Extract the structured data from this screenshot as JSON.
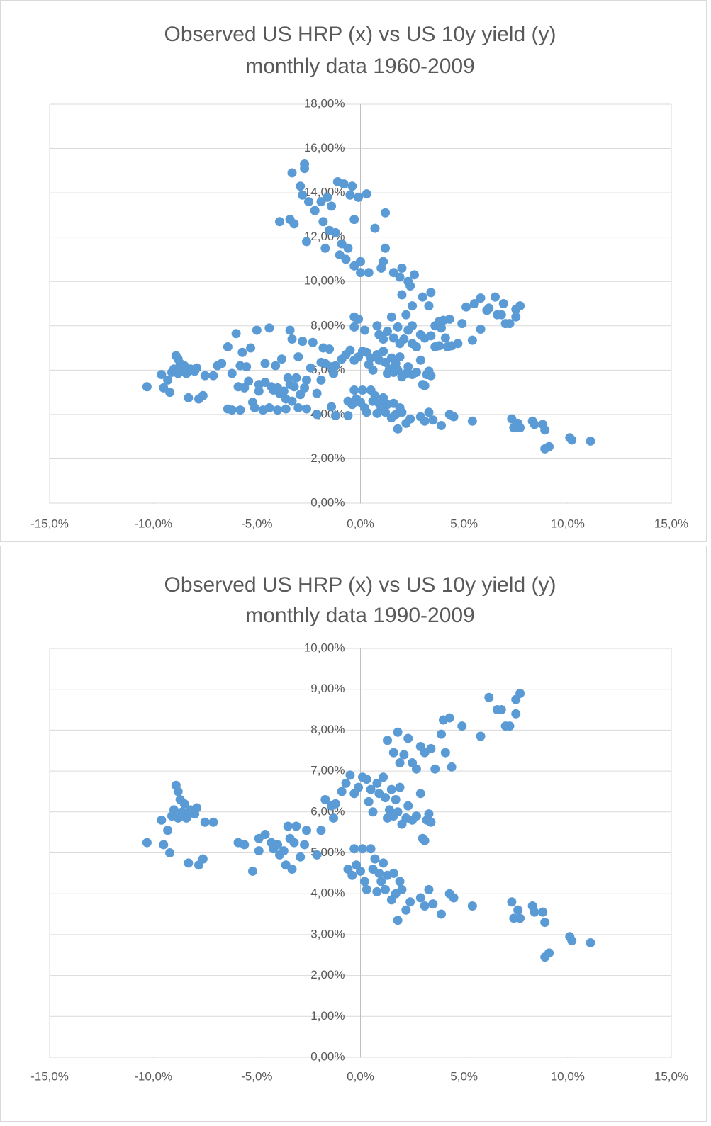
{
  "chart_data": [
    {
      "type": "scatter",
      "title": "Observed US HRP (x) vs US 10y yield (y)",
      "subtitle": "monthly data 1960-2009",
      "color": "#5b9bd5",
      "grid": true,
      "xlim": [
        -15,
        15
      ],
      "ylim": [
        0,
        18
      ],
      "xticks": [
        {
          "value": -15,
          "label": "-15,0%"
        },
        {
          "value": -10,
          "label": "-10,0%"
        },
        {
          "value": -5,
          "label": "-5,0%"
        },
        {
          "value": 0,
          "label": "0,0%"
        },
        {
          "value": 5,
          "label": "5,0%"
        },
        {
          "value": 10,
          "label": "10,0%"
        },
        {
          "value": 15,
          "label": "15,0%"
        }
      ],
      "yticks": [
        {
          "value": 0,
          "label": "0,00%"
        },
        {
          "value": 2,
          "label": "2,00%"
        },
        {
          "value": 4,
          "label": "4,00%"
        },
        {
          "value": 6,
          "label": "6,00%"
        },
        {
          "value": 8,
          "label": "8,00%"
        },
        {
          "value": 10,
          "label": "10,00%"
        },
        {
          "value": 12,
          "label": "12,00%"
        },
        {
          "value": 14,
          "label": "14,00%"
        },
        {
          "value": 16,
          "label": "16,00%"
        },
        {
          "value": 18,
          "label": "18,00%"
        }
      ],
      "x": [
        -10.3,
        -9.6,
        -9.5,
        -9.3,
        -9.2,
        -9.1,
        -9.0,
        -8.9,
        -8.8,
        -8.7,
        -8.8,
        -8.6,
        -8.5,
        -8.4,
        -8.3,
        -8.2,
        -8.0,
        -7.9,
        -8.3,
        -7.8,
        -7.6,
        -7.5,
        -7.1,
        -5.9,
        -5.6,
        -5.2,
        -4.9,
        -4.9,
        -4.6,
        -4.3,
        -4.2,
        -4.0,
        -3.9,
        -3.7,
        -3.6,
        -3.5,
        -3.4,
        -3.3,
        -3.2,
        -3.1,
        -2.9,
        -2.7,
        -2.6,
        -2.1,
        -1.9,
        -1.7,
        -1.4,
        -1.3,
        -1.2,
        -0.9,
        -0.7,
        -0.5,
        -0.3,
        -0.1,
        0.1,
        0.3,
        0.4,
        0.5,
        0.6,
        0.8,
        0.9,
        1.1,
        1.2,
        1.3,
        1.4,
        1.5,
        1.6,
        1.7,
        1.8,
        1.9,
        2.0,
        2.2,
        2.3,
        2.5,
        2.7,
        2.9,
        3.0,
        3.1,
        3.2,
        3.3,
        3.4,
        1.3,
        1.6,
        1.8,
        1.9,
        2.1,
        2.3,
        2.5,
        2.7,
        2.9,
        3.1,
        3.4,
        3.6,
        3.9,
        4.0,
        4.1,
        4.3,
        4.4,
        4.9,
        5.8,
        6.2,
        6.6,
        6.8,
        7.0,
        7.2,
        7.5,
        7.5,
        7.7,
        -0.6,
        -0.4,
        -0.3,
        -0.2,
        0.0,
        0.1,
        0.2,
        0.3,
        0.5,
        0.6,
        0.7,
        0.8,
        0.9,
        1.0,
        1.1,
        1.2,
        1.3,
        1.5,
        1.6,
        1.7,
        1.9,
        2.0,
        2.2,
        2.4,
        1.8,
        2.9,
        3.1,
        3.3,
        3.5,
        3.9,
        4.3,
        4.5,
        5.4,
        7.3,
        7.4,
        7.6,
        7.7,
        8.3,
        8.4,
        8.8,
        8.9,
        8.9,
        9.1,
        10.1,
        10.2,
        11.1,
        -3.3,
        -2.7,
        -2.7,
        -2.9,
        -2.8,
        -2.5,
        -2.2,
        -1.9,
        -1.6,
        -1.4,
        -1.1,
        -0.8,
        -0.4,
        -0.5,
        -0.1,
        0.3,
        -0.3,
        1.2,
        0.7,
        -3.9,
        -3.4,
        -3.2,
        -2.6,
        -1.8,
        -1.5,
        -1.2,
        -1.7,
        -0.9,
        -1.0,
        -0.6,
        -0.7,
        -0.3,
        0.0,
        0.0,
        0.4,
        1.0,
        1.1,
        1.2,
        1.6,
        1.9,
        2.0,
        2.3,
        2.6,
        2.0,
        2.4,
        3.0,
        3.4,
        2.5,
        3.3,
        2.2,
        1.5,
        0.8,
        -0.3,
        -0.1,
        -0.3,
        0.2,
        5.1,
        5.5,
        5.8,
        6.1,
        6.5,
        6.9,
        5.4,
        4.7,
        4.2,
        3.8,
        -6.4,
        -6.0,
        -5.7,
        -5.3,
        -5.0,
        -4.4,
        -3.4,
        -3.3,
        -2.8,
        -2.3,
        -1.8,
        -1.5,
        -6.7,
        -6.9,
        -6.2,
        -5.8,
        -5.5,
        -6.4,
        -6.2,
        -5.8,
        -5.1,
        -4.7,
        -4.4,
        -4.0,
        -3.6,
        -3.0,
        -2.6,
        -2.1,
        -1.4,
        -1.2,
        -0.6,
        -5.4,
        -4.6,
        -4.1,
        -3.8,
        -3.0,
        -2.4,
        -1.9,
        0.9,
        1.1,
        2.5,
        3.6,
        3.8
      ],
      "values": [
        5.25,
        5.8,
        5.2,
        5.55,
        5.0,
        5.9,
        6.05,
        6.65,
        6.5,
        6.3,
        5.85,
        6.0,
        6.2,
        5.85,
        5.95,
        6.05,
        5.95,
        6.1,
        4.75,
        4.7,
        4.85,
        5.75,
        5.75,
        5.25,
        5.2,
        4.55,
        5.05,
        5.35,
        5.45,
        5.25,
        5.1,
        5.2,
        4.95,
        5.05,
        4.7,
        5.65,
        5.35,
        4.6,
        5.25,
        5.65,
        4.9,
        5.2,
        5.55,
        4.95,
        5.55,
        6.3,
        6.15,
        5.85,
        6.2,
        6.5,
        6.7,
        6.9,
        6.45,
        6.6,
        6.85,
        6.8,
        6.25,
        6.55,
        6.0,
        6.7,
        6.45,
        6.85,
        6.35,
        5.85,
        6.05,
        6.55,
        5.9,
        6.3,
        6.0,
        6.6,
        5.7,
        5.85,
        6.15,
        5.8,
        5.9,
        6.45,
        5.35,
        5.3,
        5.8,
        5.95,
        5.75,
        7.75,
        7.45,
        7.95,
        7.2,
        7.4,
        7.8,
        7.2,
        7.05,
        7.6,
        7.45,
        7.55,
        7.05,
        7.9,
        8.25,
        7.45,
        8.3,
        7.1,
        8.1,
        7.85,
        8.8,
        8.5,
        8.5,
        8.1,
        8.1,
        8.4,
        8.75,
        8.9,
        4.6,
        4.45,
        5.1,
        4.7,
        4.55,
        5.1,
        4.3,
        4.1,
        5.1,
        4.6,
        4.85,
        4.05,
        4.5,
        4.3,
        4.75,
        4.1,
        4.45,
        3.85,
        4.5,
        4.0,
        4.3,
        4.1,
        3.6,
        3.8,
        3.35,
        3.9,
        3.7,
        4.1,
        3.75,
        3.5,
        4.0,
        3.9,
        3.7,
        3.8,
        3.4,
        3.6,
        3.4,
        3.7,
        3.55,
        3.55,
        3.3,
        2.45,
        2.55,
        2.95,
        2.85,
        2.8,
        14.9,
        15.3,
        15.1,
        14.3,
        13.9,
        13.6,
        13.2,
        13.6,
        13.8,
        13.4,
        14.5,
        14.4,
        14.3,
        13.9,
        13.8,
        13.95,
        12.8,
        13.1,
        12.4,
        12.7,
        12.8,
        12.6,
        11.8,
        12.7,
        12.3,
        12.2,
        11.5,
        11.7,
        11.2,
        11.5,
        11.0,
        10.7,
        10.9,
        10.4,
        10.4,
        10.6,
        10.9,
        11.5,
        10.4,
        10.2,
        10.6,
        10.0,
        10.3,
        9.4,
        9.8,
        9.3,
        9.5,
        8.9,
        8.9,
        8.5,
        8.4,
        8.0,
        8.4,
        8.3,
        7.95,
        7.8,
        8.85,
        9.0,
        9.25,
        8.7,
        9.3,
        9.0,
        7.35,
        7.2,
        7.05,
        7.1,
        7.05,
        7.65,
        6.8,
        7.0,
        7.8,
        7.9,
        7.8,
        7.4,
        7.3,
        7.25,
        7.0,
        6.95,
        6.3,
        6.2,
        5.85,
        6.2,
        6.15,
        4.25,
        4.2,
        4.2,
        4.3,
        4.2,
        4.3,
        4.2,
        4.25,
        4.3,
        4.25,
        4.0,
        4.35,
        3.95,
        3.95,
        5.5,
        6.3,
        6.2,
        6.5,
        6.6,
        6.1,
        6.35,
        7.6,
        7.4,
        8.0,
        8.0,
        8.2
      ]
    },
    {
      "type": "scatter",
      "title": "Observed US HRP (x) vs US 10y yield (y)",
      "subtitle": "monthly data 1990-2009",
      "color": "#5b9bd5",
      "grid": true,
      "xlim": [
        -15,
        15
      ],
      "ylim": [
        0,
        10
      ],
      "xticks": [
        {
          "value": -15,
          "label": "-15,0%"
        },
        {
          "value": -10,
          "label": "-10,0%"
        },
        {
          "value": -5,
          "label": "-5,0%"
        },
        {
          "value": 0,
          "label": "0,0%"
        },
        {
          "value": 5,
          "label": "5,0%"
        },
        {
          "value": 10,
          "label": "10,0%"
        },
        {
          "value": 15,
          "label": "15,0%"
        }
      ],
      "yticks": [
        {
          "value": 0,
          "label": "0,00%"
        },
        {
          "value": 1,
          "label": "1,00%"
        },
        {
          "value": 2,
          "label": "2,00%"
        },
        {
          "value": 3,
          "label": "3,00%"
        },
        {
          "value": 4,
          "label": "4,00%"
        },
        {
          "value": 5,
          "label": "5,00%"
        },
        {
          "value": 6,
          "label": "6,00%"
        },
        {
          "value": 7,
          "label": "7,00%"
        },
        {
          "value": 8,
          "label": "8,00%"
        },
        {
          "value": 9,
          "label": "9,00%"
        },
        {
          "value": 10,
          "label": "10,00%"
        }
      ],
      "x": [
        -10.3,
        -9.6,
        -9.5,
        -9.3,
        -9.2,
        -9.1,
        -9.0,
        -8.9,
        -8.8,
        -8.7,
        -8.8,
        -8.6,
        -8.5,
        -8.4,
        -8.3,
        -8.2,
        -8.0,
        -7.9,
        -8.3,
        -7.8,
        -7.6,
        -7.5,
        -7.1,
        -5.9,
        -5.6,
        -5.2,
        -4.9,
        -4.9,
        -4.6,
        -4.3,
        -4.2,
        -4.0,
        -3.9,
        -3.7,
        -3.6,
        -3.5,
        -3.4,
        -3.3,
        -3.2,
        -3.1,
        -2.9,
        -2.7,
        -2.6,
        -2.1,
        -1.9,
        -1.7,
        -1.4,
        -1.3,
        -1.2,
        -0.9,
        -0.7,
        -0.5,
        -0.3,
        -0.1,
        0.1,
        0.3,
        0.4,
        0.5,
        0.6,
        0.8,
        0.9,
        1.1,
        1.2,
        1.3,
        1.4,
        1.5,
        1.6,
        1.7,
        1.8,
        1.9,
        2.0,
        2.2,
        2.3,
        2.5,
        2.7,
        2.9,
        3.0,
        3.1,
        3.2,
        3.3,
        3.4,
        1.3,
        1.6,
        1.8,
        1.9,
        2.1,
        2.3,
        2.5,
        2.7,
        2.9,
        3.1,
        3.4,
        3.6,
        3.9,
        4.0,
        4.1,
        4.3,
        4.4,
        4.9,
        5.8,
        6.2,
        6.6,
        6.8,
        7.0,
        7.2,
        7.5,
        7.5,
        7.7,
        -0.6,
        -0.4,
        -0.3,
        -0.2,
        0.0,
        0.1,
        0.2,
        0.3,
        0.5,
        0.6,
        0.7,
        0.8,
        0.9,
        1.0,
        1.1,
        1.2,
        1.3,
        1.5,
        1.6,
        1.7,
        1.9,
        2.0,
        2.2,
        2.4,
        1.8,
        2.9,
        3.1,
        3.3,
        3.5,
        3.9,
        4.3,
        4.5,
        5.4,
        7.3,
        7.4,
        7.6,
        7.7,
        8.3,
        8.4,
        8.8,
        8.9,
        8.9,
        9.1,
        10.1,
        10.2,
        11.1
      ],
      "values": [
        5.25,
        5.8,
        5.2,
        5.55,
        5.0,
        5.9,
        6.05,
        6.65,
        6.5,
        6.3,
        5.85,
        6.0,
        6.2,
        5.85,
        5.95,
        6.05,
        5.95,
        6.1,
        4.75,
        4.7,
        4.85,
        5.75,
        5.75,
        5.25,
        5.2,
        4.55,
        5.05,
        5.35,
        5.45,
        5.25,
        5.1,
        5.2,
        4.95,
        5.05,
        4.7,
        5.65,
        5.35,
        4.6,
        5.25,
        5.65,
        4.9,
        5.2,
        5.55,
        4.95,
        5.55,
        6.3,
        6.15,
        5.85,
        6.2,
        6.5,
        6.7,
        6.9,
        6.45,
        6.6,
        6.85,
        6.8,
        6.25,
        6.55,
        6.0,
        6.7,
        6.45,
        6.85,
        6.35,
        5.85,
        6.05,
        6.55,
        5.9,
        6.3,
        6.0,
        6.6,
        5.7,
        5.85,
        6.15,
        5.8,
        5.9,
        6.45,
        5.35,
        5.3,
        5.8,
        5.95,
        5.75,
        7.75,
        7.45,
        7.95,
        7.2,
        7.4,
        7.8,
        7.2,
        7.05,
        7.6,
        7.45,
        7.55,
        7.05,
        7.9,
        8.25,
        7.45,
        8.3,
        7.1,
        8.1,
        7.85,
        8.8,
        8.5,
        8.5,
        8.1,
        8.1,
        8.4,
        8.75,
        8.9,
        4.6,
        4.45,
        5.1,
        4.7,
        4.55,
        5.1,
        4.3,
        4.1,
        5.1,
        4.6,
        4.85,
        4.05,
        4.5,
        4.3,
        4.75,
        4.1,
        4.45,
        3.85,
        4.5,
        4.0,
        4.3,
        4.1,
        3.6,
        3.8,
        3.35,
        3.9,
        3.7,
        4.1,
        3.75,
        3.5,
        4.0,
        3.9,
        3.7,
        3.8,
        3.4,
        3.6,
        3.4,
        3.7,
        3.55,
        3.55,
        3.3,
        2.45,
        2.55,
        2.95,
        2.85,
        2.8
      ]
    }
  ]
}
